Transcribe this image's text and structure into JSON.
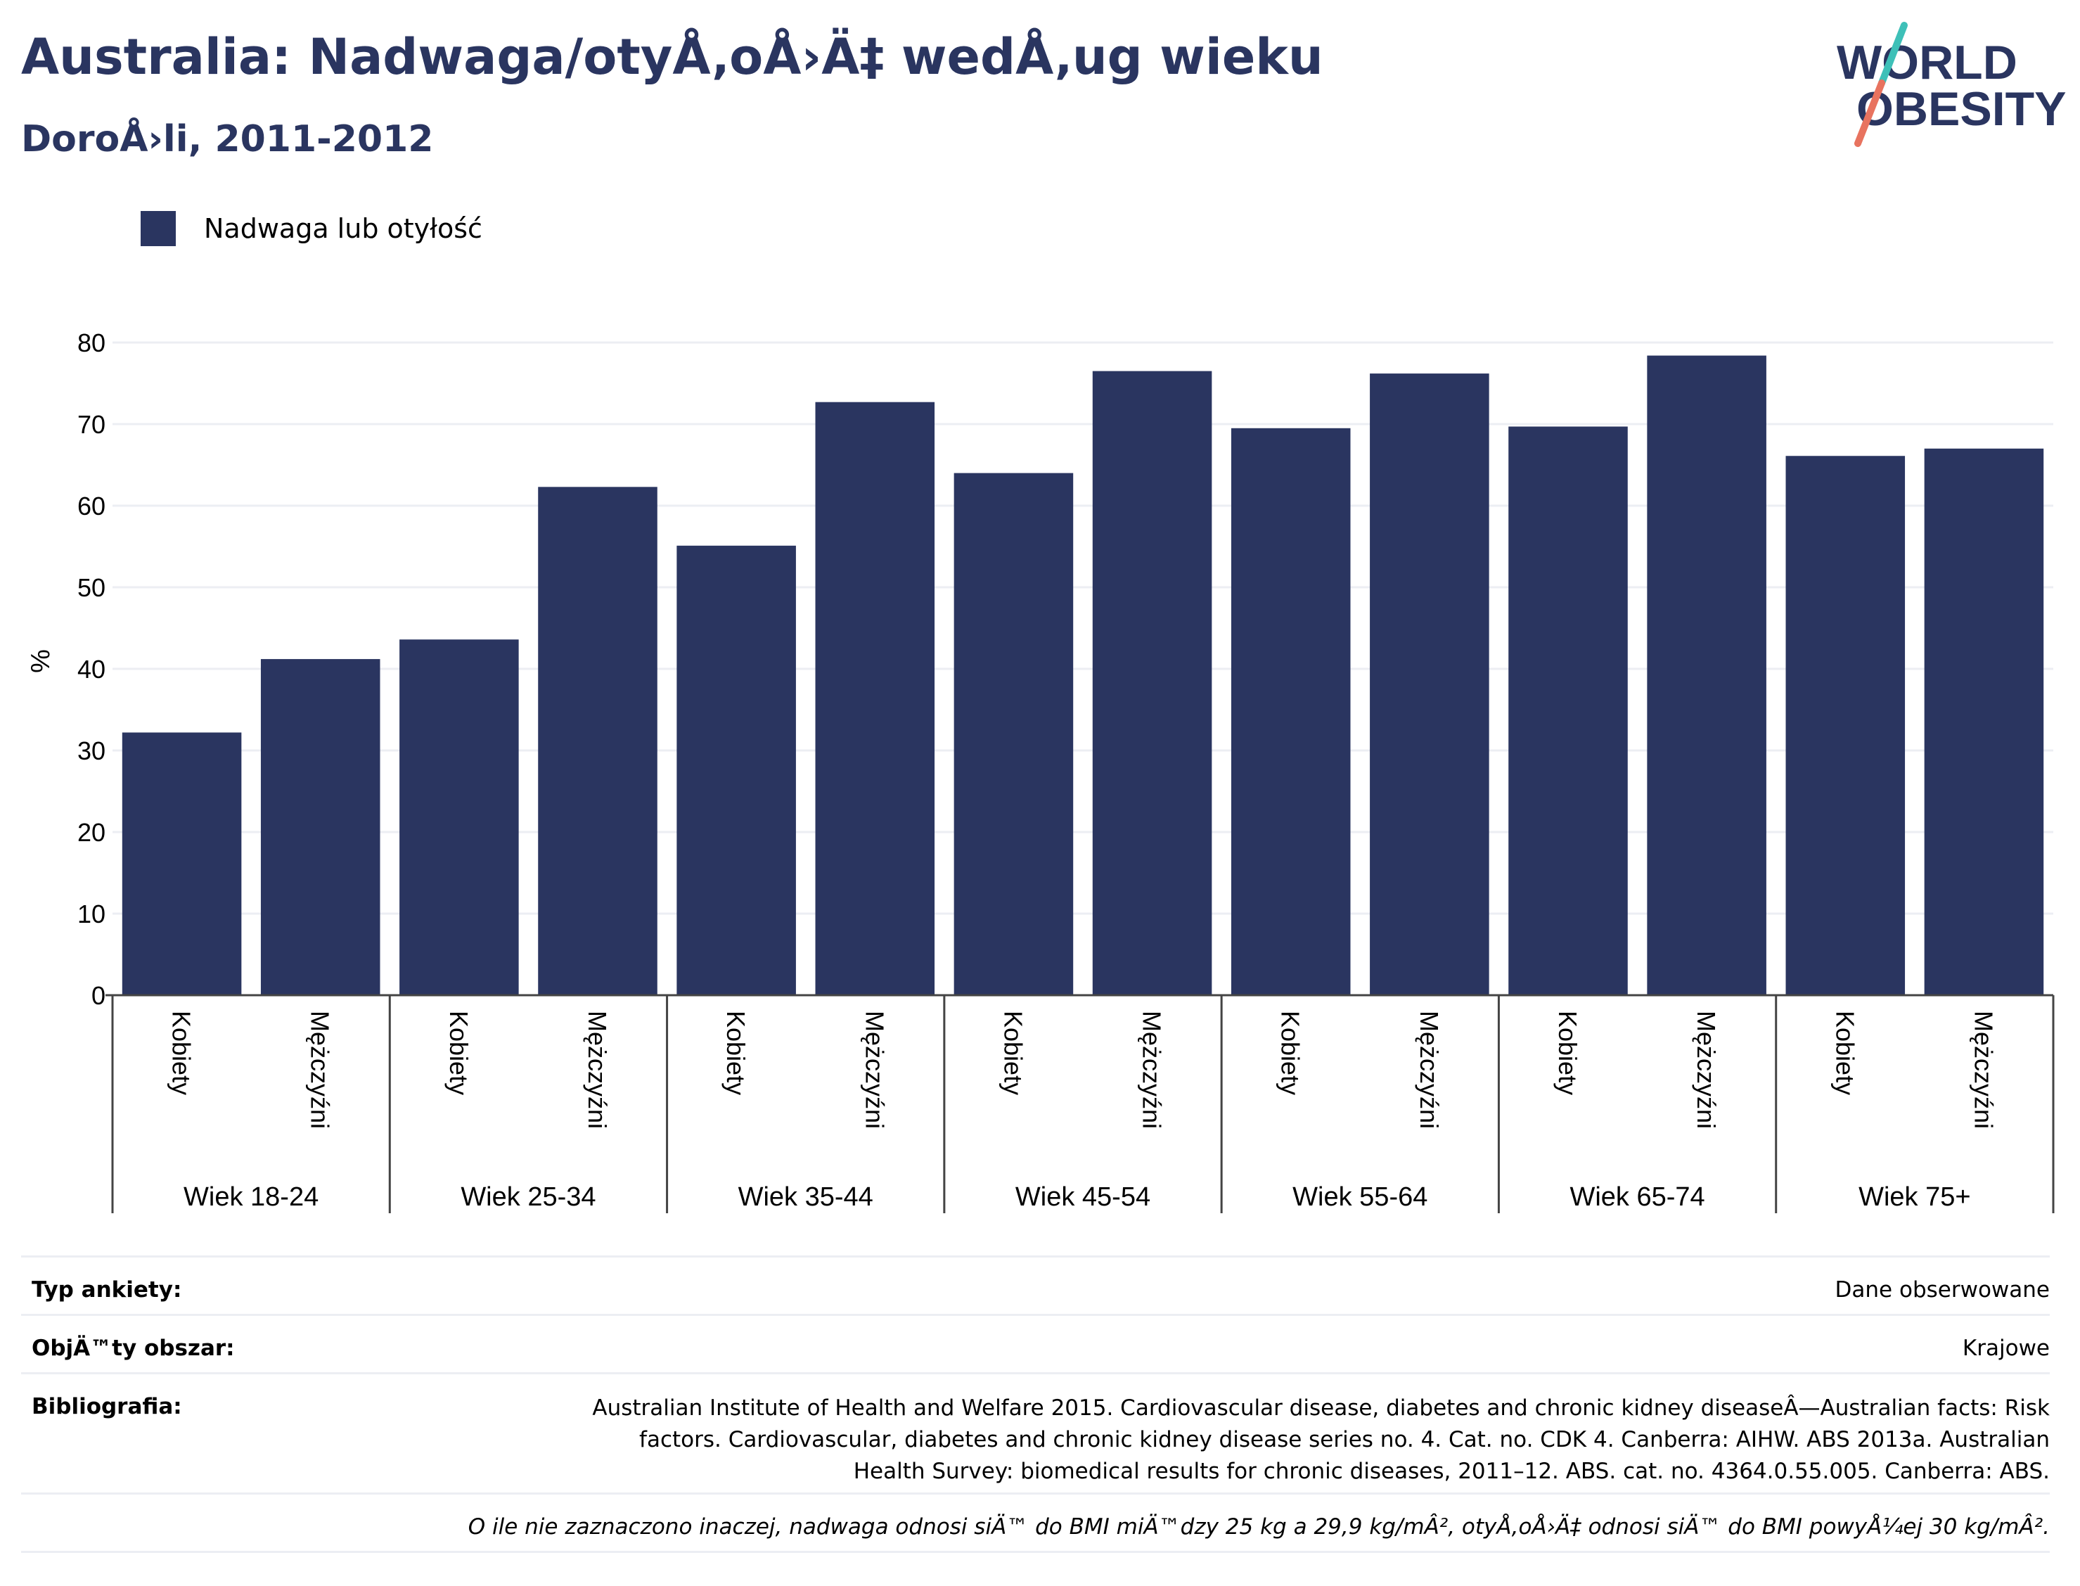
{
  "header": {
    "title": "Australia: Nadwaga/otyÅ‚oÅ›Ä‡ wedÅ‚ug wieku",
    "subtitle": "DoroÅ›li, 2011-2012"
  },
  "logo": {
    "line1": "WORLD",
    "line2": "OBESITY"
  },
  "colors": {
    "bar": "#2a3560",
    "title": "#2a3560",
    "grid": "#eceef3",
    "logo_slash_top": "#3ec0b8",
    "logo_slash_bottom": "#e8735f"
  },
  "chart_data": {
    "type": "bar",
    "ylabel": "%",
    "ylim": [
      0,
      80
    ],
    "yticks": [
      0,
      10,
      20,
      30,
      40,
      50,
      60,
      70,
      80
    ],
    "grid": true,
    "legend_position": "top-left",
    "series": [
      {
        "name": "Nadwaga lub otyłość",
        "groups": [
          {
            "label": "Wiek 18-24",
            "bars": [
              {
                "label": "Kobiety",
                "value": 32.2
              },
              {
                "label": "Mężczyźni",
                "value": 41.2
              }
            ]
          },
          {
            "label": "Wiek 25-34",
            "bars": [
              {
                "label": "Kobiety",
                "value": 43.6
              },
              {
                "label": "Mężczyźni",
                "value": 62.3
              }
            ]
          },
          {
            "label": "Wiek 35-44",
            "bars": [
              {
                "label": "Kobiety",
                "value": 55.1
              },
              {
                "label": "Mężczyźni",
                "value": 72.7
              }
            ]
          },
          {
            "label": "Wiek 45-54",
            "bars": [
              {
                "label": "Kobiety",
                "value": 64.0
              },
              {
                "label": "Mężczyźni",
                "value": 76.5
              }
            ]
          },
          {
            "label": "Wiek 55-64",
            "bars": [
              {
                "label": "Kobiety",
                "value": 69.5
              },
              {
                "label": "Mężczyźni",
                "value": 76.2
              }
            ]
          },
          {
            "label": "Wiek 65-74",
            "bars": [
              {
                "label": "Kobiety",
                "value": 69.7
              },
              {
                "label": "Mężczyźni",
                "value": 78.4
              }
            ]
          },
          {
            "label": "Wiek 75+",
            "bars": [
              {
                "label": "Kobiety",
                "value": 66.1
              },
              {
                "label": "Mężczyźni",
                "value": 67.0
              }
            ]
          }
        ]
      }
    ]
  },
  "info": {
    "survey_label": "Typ ankiety:",
    "survey_value": "Dane obserwowane",
    "area_label": "ObjÄ™ty obszar:",
    "area_value": "Krajowe",
    "biblio_label": "Bibliografia:",
    "biblio_lines": [
      "Australian Institute of Health and Welfare 2015. Cardiovascular disease, diabetes and chronic kidney diseaseÂ—Australian facts: Risk",
      "factors. Cardiovascular, diabetes and chronic kidney disease series no. 4. Cat. no. CDK 4. Canberra: AIHW. ABS 2013a. Australian",
      "Health Survey: biomedical results for chronic diseases, 2011–12. ABS. cat. no. 4364.0.55.005. Canberra: ABS."
    ],
    "note": "O ile nie zaznaczono inaczej, nadwaga odnosi siÄ™ do BMI miÄ™dzy 25 kg a 29,9 kg/mÂ², otyÅ‚oÅ›Ä‡ odnosi siÄ™ do BMI powyÅ¼ej 30 kg/mÂ²."
  }
}
